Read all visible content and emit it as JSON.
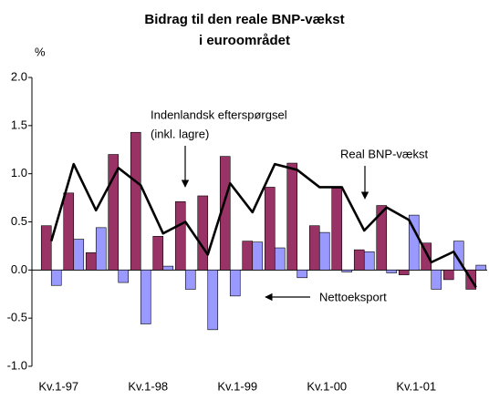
{
  "chart_data": {
    "type": "bar_line",
    "title": [
      "Bidrag til den reale BNP-vækst",
      "i euroområdet"
    ],
    "y_unit": "%",
    "categories": [
      "Kv.1-97",
      null,
      null,
      null,
      "Kv.1-98",
      null,
      null,
      null,
      "Kv.1-99",
      null,
      null,
      null,
      "Kv.1-00",
      null,
      null,
      null,
      "Kv.1-01",
      null,
      null,
      null
    ],
    "series": [
      {
        "type": "bar",
        "color": "#993366",
        "values": [
          0.46,
          0.8,
          0.18,
          1.2,
          1.43,
          0.35,
          0.71,
          0.77,
          1.18,
          0.3,
          0.86,
          1.11,
          0.46,
          0.85,
          0.21,
          0.67,
          -0.05,
          0.28,
          -0.1,
          -0.2
        ]
      },
      {
        "type": "bar",
        "color": "#9999ff",
        "values": [
          -0.16,
          0.32,
          0.44,
          -0.13,
          -0.56,
          0.04,
          -0.2,
          -0.62,
          -0.27,
          0.29,
          0.23,
          -0.08,
          0.39,
          -0.02,
          0.19,
          -0.03,
          0.57,
          -0.2,
          0.3,
          0.05
        ]
      },
      {
        "type": "line",
        "color": "#000000",
        "values": [
          0.3,
          1.1,
          0.62,
          1.06,
          0.88,
          0.38,
          0.5,
          0.16,
          0.9,
          0.6,
          1.1,
          1.04,
          0.86,
          0.86,
          0.41,
          0.65,
          0.52,
          0.08,
          0.19,
          -0.18
        ]
      }
    ],
    "annotations": [
      "Indenlandsk efterspørgsel",
      "(inkl. lagre)",
      "Real BNP-vækst",
      "Nettoeksport"
    ],
    "ylim": [
      -1,
      2
    ],
    "yticks": [
      {
        "value": -1,
        "label": "-1.0"
      },
      {
        "value": -0.5,
        "label": "-0.5"
      },
      {
        "value": 0,
        "label": "0.0"
      },
      {
        "value": 0.5,
        "label": "0.5"
      },
      {
        "value": 1,
        "label": "1.0"
      },
      {
        "value": 1.5,
        "label": "1.5"
      },
      {
        "value": 2,
        "label": "2.0"
      }
    ],
    "grid": false
  }
}
